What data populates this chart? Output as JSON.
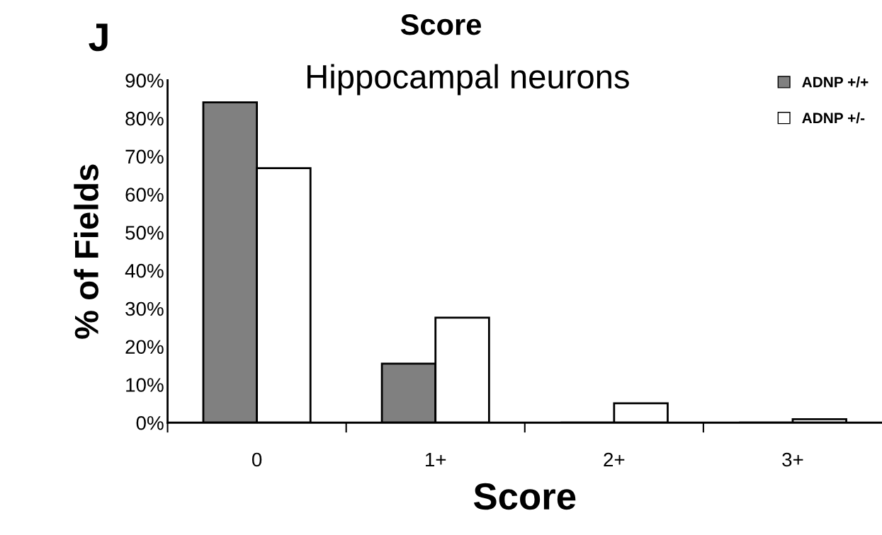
{
  "chart_data": {
    "type": "bar",
    "title": "Score",
    "subtitle": "Hippocampal neurons",
    "xlabel": "Score",
    "ylabel": "% of Fields",
    "annotations": [
      "J"
    ],
    "categories": [
      "0",
      "1+",
      "2+",
      "3+"
    ],
    "series": [
      {
        "name": "ADNP +/+",
        "color": "#808080",
        "values": [
          84.2,
          15.5,
          0,
          0
        ]
      },
      {
        "name": "ADNP +/-",
        "color": "#ffffff",
        "values": [
          66.9,
          27.6,
          5.1,
          0.9
        ]
      }
    ],
    "ylim": [
      0,
      90
    ],
    "yticks": [
      {
        "value": 0,
        "label": "0%"
      },
      {
        "value": 10,
        "label": "10%"
      },
      {
        "value": 20,
        "label": "20%"
      },
      {
        "value": 30,
        "label": "30%"
      },
      {
        "value": 40,
        "label": "40%"
      },
      {
        "value": 50,
        "label": "50%"
      },
      {
        "value": 60,
        "label": "60%"
      },
      {
        "value": 70,
        "label": "70%"
      },
      {
        "value": 80,
        "label": "80%"
      },
      {
        "value": 90,
        "label": "90%"
      }
    ],
    "legend": "top right",
    "grid": false
  }
}
